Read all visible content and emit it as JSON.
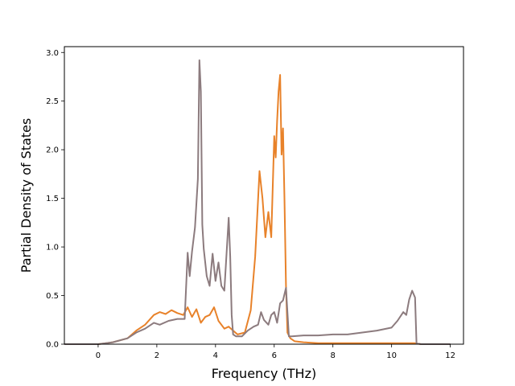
{
  "chart_data": {
    "type": "line",
    "title": "",
    "xlabel": "Frequency (THz)",
    "ylabel": "Partial Density of States",
    "xlim": [
      -1.15,
      12.45
    ],
    "ylim": [
      0,
      3.06
    ],
    "xticks": [
      0,
      2,
      4,
      6,
      8,
      10,
      12
    ],
    "xtick_labels": [
      "0",
      "2",
      "4",
      "6",
      "8",
      "10",
      "12"
    ],
    "yticks": [
      0.0,
      0.5,
      1.0,
      1.5,
      2.0,
      2.5,
      3.0
    ],
    "ytick_labels": [
      "0.0",
      "0.5",
      "1.0",
      "1.5",
      "2.0",
      "2.5",
      "3.0"
    ],
    "grid": false,
    "series": [
      {
        "color": "#e8822a",
        "x": [
          -1.15,
          0.0,
          0.5,
          1.0,
          1.3,
          1.6,
          1.9,
          2.1,
          2.3,
          2.5,
          2.7,
          2.9,
          3.05,
          3.2,
          3.35,
          3.5,
          3.65,
          3.8,
          3.95,
          4.1,
          4.3,
          4.45,
          4.6,
          4.75,
          5.0,
          5.2,
          5.35,
          5.5,
          5.6,
          5.7,
          5.8,
          5.9,
          6.0,
          6.05,
          6.1,
          6.15,
          6.2,
          6.25,
          6.3,
          6.35,
          6.4,
          6.45,
          6.55,
          6.7,
          7.0,
          7.5,
          8.0,
          9.0,
          10.0,
          10.5,
          10.8,
          11.0,
          12.0
        ],
        "values": [
          0,
          0,
          0.02,
          0.06,
          0.14,
          0.2,
          0.3,
          0.33,
          0.31,
          0.35,
          0.32,
          0.3,
          0.38,
          0.28,
          0.36,
          0.22,
          0.28,
          0.3,
          0.38,
          0.24,
          0.16,
          0.18,
          0.14,
          0.1,
          0.12,
          0.35,
          0.9,
          1.78,
          1.5,
          1.1,
          1.36,
          1.1,
          2.14,
          1.92,
          2.3,
          2.6,
          2.77,
          1.95,
          2.22,
          1.5,
          0.6,
          0.12,
          0.06,
          0.03,
          0.02,
          0.01,
          0.01,
          0.01,
          0.01,
          0.01,
          0.01,
          0,
          0
        ]
      },
      {
        "color": "#8c7b7e",
        "x": [
          -1.15,
          0.0,
          0.5,
          1.0,
          1.3,
          1.6,
          1.9,
          2.1,
          2.4,
          2.7,
          2.95,
          3.05,
          3.12,
          3.2,
          3.3,
          3.4,
          3.45,
          3.5,
          3.55,
          3.6,
          3.7,
          3.8,
          3.9,
          4.0,
          4.1,
          4.2,
          4.3,
          4.45,
          4.5,
          4.55,
          4.6,
          4.7,
          4.9,
          5.1,
          5.3,
          5.45,
          5.55,
          5.65,
          5.8,
          5.9,
          6.0,
          6.1,
          6.2,
          6.3,
          6.4,
          6.5,
          6.6,
          7.0,
          7.5,
          8.0,
          8.5,
          9.0,
          9.5,
          10.0,
          10.2,
          10.4,
          10.5,
          10.6,
          10.7,
          10.8,
          10.85,
          11.0,
          12.0
        ],
        "values": [
          0,
          0,
          0.02,
          0.06,
          0.12,
          0.16,
          0.22,
          0.2,
          0.24,
          0.26,
          0.26,
          0.94,
          0.7,
          0.95,
          1.2,
          1.7,
          2.92,
          2.6,
          1.23,
          0.98,
          0.7,
          0.6,
          0.93,
          0.65,
          0.84,
          0.6,
          0.55,
          1.3,
          0.9,
          0.3,
          0.1,
          0.08,
          0.08,
          0.14,
          0.18,
          0.2,
          0.33,
          0.25,
          0.2,
          0.3,
          0.33,
          0.22,
          0.42,
          0.45,
          0.58,
          0.08,
          0.08,
          0.09,
          0.09,
          0.1,
          0.1,
          0.12,
          0.14,
          0.17,
          0.24,
          0.33,
          0.3,
          0.46,
          0.55,
          0.48,
          0.01,
          0,
          0
        ]
      }
    ]
  }
}
